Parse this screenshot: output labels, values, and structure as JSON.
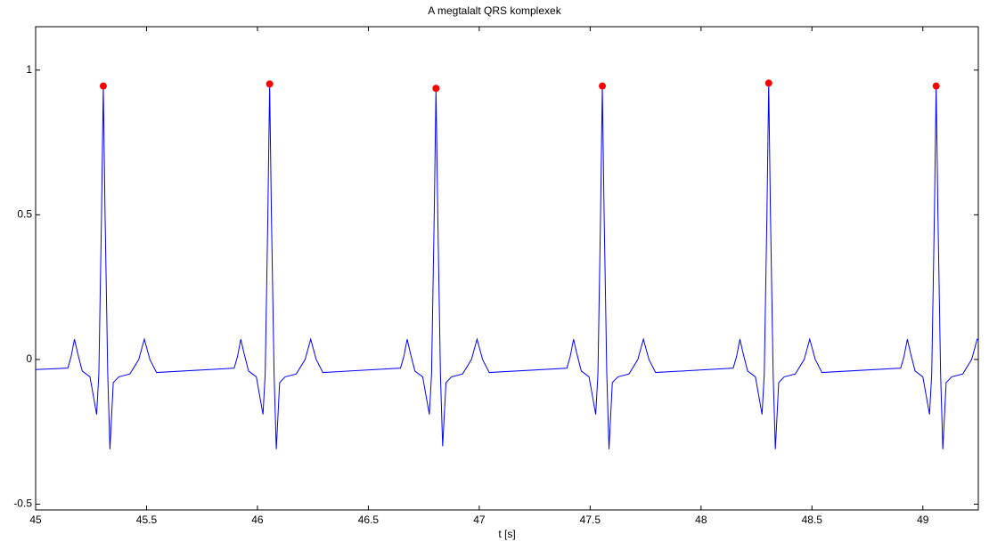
{
  "chart_data": {
    "type": "line",
    "title": "A megtalalt QRS komplexek",
    "x_label": "t [s]",
    "xlim": [
      45,
      49.25
    ],
    "ylim": [
      -0.52,
      1.15
    ],
    "xticks": [
      45,
      45.5,
      46,
      46.5,
      47,
      47.5,
      48,
      48.5,
      49
    ],
    "yticks": [
      -0.5,
      0,
      0.5,
      1
    ],
    "grid": false,
    "series": [
      {
        "color": "#0000ff",
        "style": "line",
        "x": [
          45,
          45.145,
          45.16,
          45.175,
          45.19,
          45.21,
          45.245,
          45.275,
          45.285,
          45.297,
          45.305,
          45.313,
          45.325,
          45.335,
          45.35,
          45.375,
          45.425,
          45.465,
          45.49,
          45.515,
          45.545,
          45.895,
          45.91,
          45.925,
          45.94,
          45.96,
          45.995,
          46.025,
          46.035,
          46.047,
          46.055,
          46.063,
          46.075,
          46.085,
          46.1,
          46.125,
          46.175,
          46.215,
          46.24,
          46.265,
          46.295,
          46.645,
          46.66,
          46.675,
          46.69,
          46.71,
          46.745,
          46.775,
          46.785,
          46.797,
          46.805,
          46.813,
          46.825,
          46.835,
          46.85,
          46.875,
          46.925,
          46.965,
          46.99,
          47.015,
          47.045,
          47.395,
          47.41,
          47.425,
          47.44,
          47.46,
          47.495,
          47.525,
          47.535,
          47.547,
          47.555,
          47.563,
          47.575,
          47.585,
          47.6,
          47.625,
          47.675,
          47.715,
          47.74,
          47.765,
          47.795,
          48.145,
          48.16,
          48.175,
          48.19,
          48.21,
          48.245,
          48.275,
          48.285,
          48.297,
          48.305,
          48.313,
          48.325,
          48.335,
          48.35,
          48.375,
          48.425,
          48.465,
          48.49,
          48.515,
          48.545,
          48.9,
          48.915,
          48.93,
          48.945,
          48.965,
          49.0,
          49.03,
          49.04,
          49.052,
          49.06,
          49.068,
          49.08,
          49.09,
          49.105,
          49.13,
          49.18,
          49.22,
          49.245,
          49.25
        ],
        "values": [
          -0.035,
          -0.03,
          0.01,
          0.07,
          0.02,
          -0.04,
          -0.06,
          -0.19,
          -0.05,
          0.5,
          0.945,
          0.5,
          -0.05,
          -0.31,
          -0.08,
          -0.06,
          -0.05,
          0.0,
          0.07,
          0.0,
          -0.045,
          -0.03,
          0.01,
          0.07,
          0.02,
          -0.04,
          -0.06,
          -0.19,
          -0.05,
          0.5,
          0.952,
          0.5,
          -0.05,
          -0.31,
          -0.08,
          -0.06,
          -0.05,
          0.0,
          0.07,
          0.0,
          -0.045,
          -0.03,
          0.01,
          0.07,
          0.02,
          -0.04,
          -0.06,
          -0.19,
          -0.05,
          0.5,
          0.937,
          0.5,
          -0.05,
          -0.3,
          -0.08,
          -0.06,
          -0.05,
          0.0,
          0.07,
          0.0,
          -0.045,
          -0.03,
          0.01,
          0.07,
          0.02,
          -0.04,
          -0.06,
          -0.19,
          -0.05,
          0.5,
          0.945,
          0.5,
          -0.05,
          -0.31,
          -0.08,
          -0.06,
          -0.05,
          0.0,
          0.07,
          0.0,
          -0.045,
          -0.03,
          0.01,
          0.07,
          0.02,
          -0.04,
          -0.06,
          -0.19,
          -0.05,
          0.5,
          0.955,
          0.5,
          -0.05,
          -0.31,
          -0.08,
          -0.06,
          -0.05,
          0.0,
          0.07,
          0.0,
          -0.045,
          -0.03,
          0.01,
          0.07,
          0.02,
          -0.04,
          -0.06,
          -0.19,
          -0.05,
          0.5,
          0.945,
          0.5,
          -0.05,
          -0.31,
          -0.08,
          -0.06,
          -0.05,
          0.0,
          0.07,
          0.068
        ]
      },
      {
        "color": "#ff0000",
        "style": "marker",
        "x": [
          45.305,
          46.055,
          46.805,
          47.555,
          48.305,
          49.06
        ],
        "values": [
          0.945,
          0.952,
          0.937,
          0.945,
          0.955,
          0.945
        ]
      }
    ]
  }
}
